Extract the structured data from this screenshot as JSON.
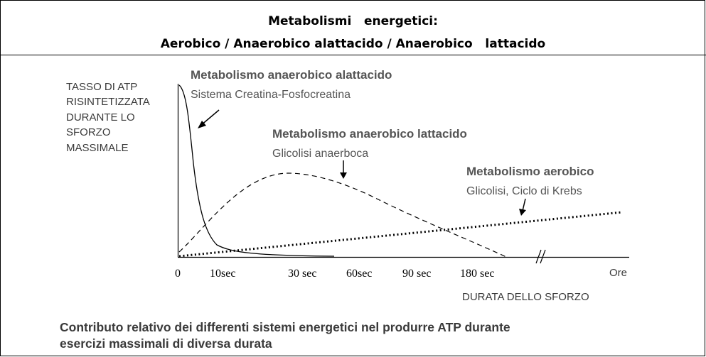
{
  "header": {
    "line1": "Metabolismi   energetici:",
    "line2": "Aerobico / Anaerobico alattacido / Anaerobico   lattacido"
  },
  "yaxis_label": [
    "TASSO DI ATP",
    "RISINTETIZZATA",
    "DURANTE LO",
    "SFORZO",
    "MASSIMALE"
  ],
  "xaxis_label": "DURATA DELLO SFORZO",
  "xticks": [
    "0",
    "10sec",
    "30 sec",
    "60sec",
    "90 sec",
    "180 sec",
    "Ore"
  ],
  "axis_break_symbol": "//",
  "annotations": {
    "alattacido": {
      "title": "Metabolismo anaerobico alattacido",
      "subtitle": "Sistema Creatina-Fosfocreatina"
    },
    "lattacido": {
      "title": "Metabolismo anaerobico lattacido",
      "subtitle": "Glicolisi anaerboca"
    },
    "aerobico": {
      "title": "Metabolismo aerobico",
      "subtitle": "Glicolisi, Ciclo di Krebs"
    }
  },
  "caption": {
    "line1": "Contributo relativo dei differenti sistemi energetici nel produrre ATP durante",
    "line2": "esercizi massimali di diversa durata"
  },
  "series_styles": {
    "alattacido": "solid",
    "lattacido": "dashed",
    "aerobico": "dotted"
  },
  "colors": {
    "title_text": "#555555",
    "axis": "#000000"
  }
}
